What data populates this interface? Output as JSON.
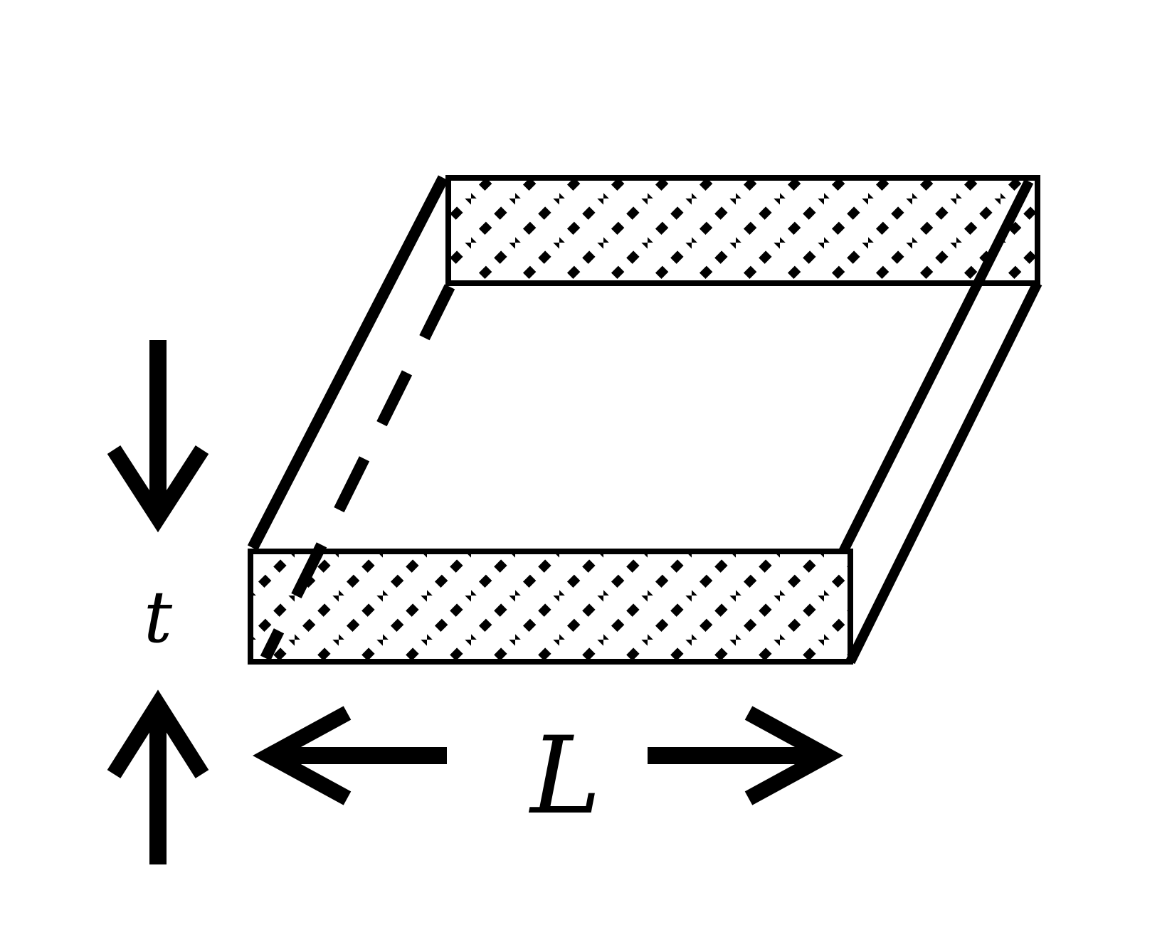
{
  "labels": {
    "thickness": "t",
    "length": "L"
  },
  "colors": {
    "stroke": "#000000",
    "background": "#ffffff"
  }
}
